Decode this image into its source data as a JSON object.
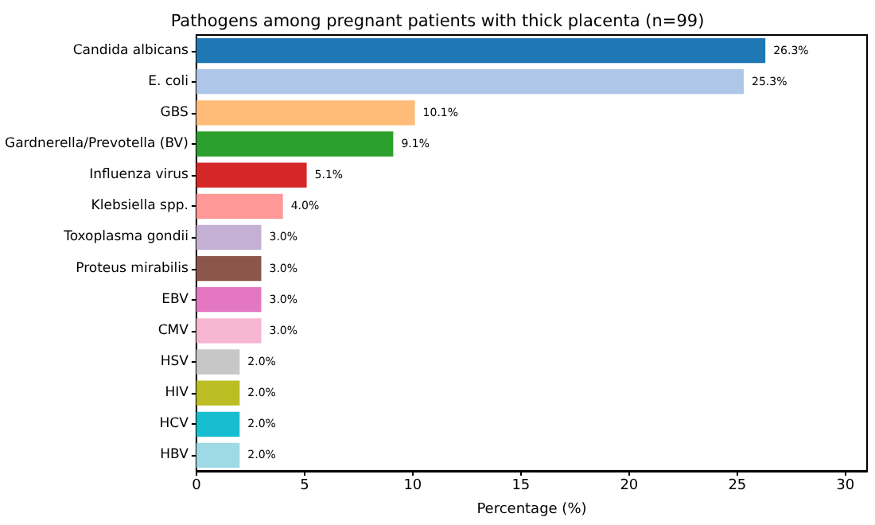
{
  "chart_data": {
    "type": "bar",
    "orientation": "horizontal",
    "title": "Pathogens among pregnant patients with thick placenta (n=99)",
    "xlabel": "Percentage (%)",
    "categories": [
      "Candida albicans",
      "E. coli",
      "GBS",
      "Gardnerella/Prevotella (BV)",
      "Influenza virus",
      "Klebsiella spp.",
      "Toxoplasma gondii",
      "Proteus mirabilis",
      "EBV",
      "CMV",
      "HSV",
      "HIV",
      "HCV",
      "HBV"
    ],
    "values": [
      26.3,
      25.3,
      10.1,
      9.1,
      5.1,
      4.0,
      3.0,
      3.0,
      3.0,
      3.0,
      2.0,
      2.0,
      2.0,
      2.0
    ],
    "value_labels": [
      "26.3%",
      "25.3%",
      "10.1%",
      "9.1%",
      "5.1%",
      "4.0%",
      "3.0%",
      "3.0%",
      "3.0%",
      "3.0%",
      "2.0%",
      "2.0%",
      "2.0%",
      "2.0%"
    ],
    "colors": [
      "#1f77b4",
      "#aec7e8",
      "#ffbb78",
      "#2ca02c",
      "#d62728",
      "#ff9896",
      "#c5b0d5",
      "#8c564b",
      "#e377c2",
      "#f7b6d2",
      "#c7c7c7",
      "#bcbd22",
      "#17becf",
      "#9edae5"
    ],
    "xlim": [
      0,
      31
    ],
    "xticks": [
      0,
      5,
      10,
      15,
      20,
      25,
      30
    ],
    "grid": false
  }
}
